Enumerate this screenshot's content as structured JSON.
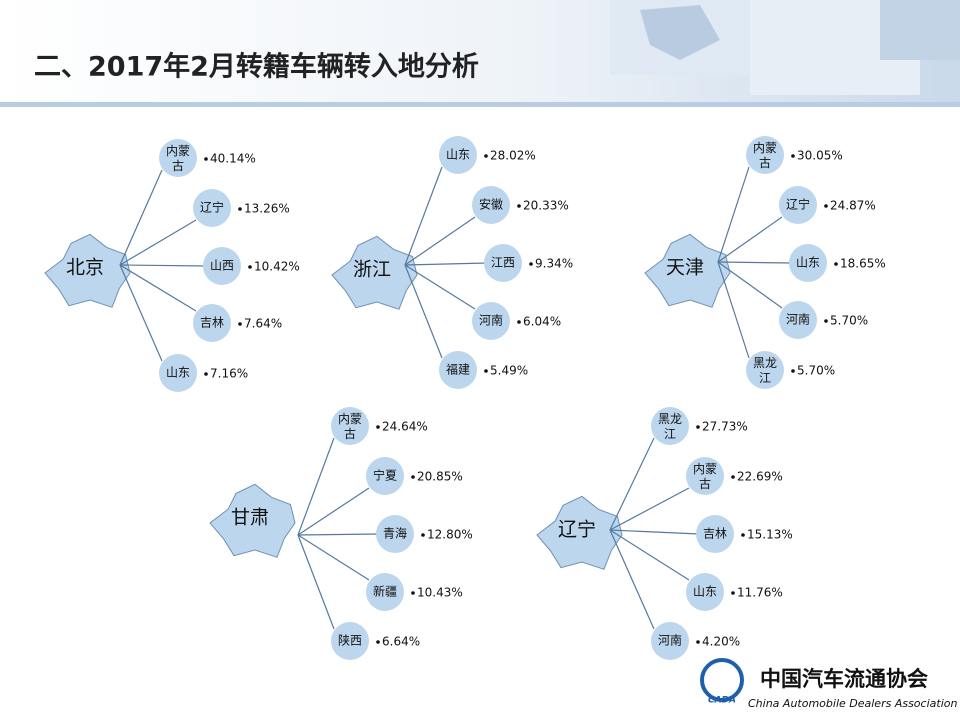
{
  "header": {
    "title": "二、2017年2月转籍车辆转入地分析"
  },
  "groups": [
    {
      "origin": "北京",
      "destinations": [
        {
          "name": "内蒙古",
          "share": "40.14%"
        },
        {
          "name": "辽宁",
          "share": "13.26%"
        },
        {
          "name": "山西",
          "share": "10.42%"
        },
        {
          "name": "吉林",
          "share": "7.64%"
        },
        {
          "name": "山东",
          "share": "7.16%"
        }
      ]
    },
    {
      "origin": "浙江",
      "destinations": [
        {
          "name": "山东",
          "share": "28.02%"
        },
        {
          "name": "安徽",
          "share": "20.33%"
        },
        {
          "name": "江西",
          "share": "9.34%"
        },
        {
          "name": "河南",
          "share": "6.04%"
        },
        {
          "name": "福建",
          "share": "5.49%"
        }
      ]
    },
    {
      "origin": "天津",
      "destinations": [
        {
          "name": "内蒙古",
          "share": "30.05%"
        },
        {
          "name": "辽宁",
          "share": "24.87%"
        },
        {
          "name": "山东",
          "share": "18.65%"
        },
        {
          "name": "河南",
          "share": "5.70%"
        },
        {
          "name": "黑龙江",
          "share": "5.70%"
        }
      ]
    },
    {
      "origin": "甘肃",
      "destinations": [
        {
          "name": "内蒙古",
          "share": "24.64%"
        },
        {
          "name": "宁夏",
          "share": "20.85%"
        },
        {
          "name": "青海",
          "share": "12.80%"
        },
        {
          "name": "新疆",
          "share": "10.43%"
        },
        {
          "name": "陕西",
          "share": "6.64%"
        }
      ]
    },
    {
      "origin": "辽宁",
      "destinations": [
        {
          "name": "黑龙江",
          "share": "27.73%"
        },
        {
          "name": "内蒙古",
          "share": "22.69%"
        },
        {
          "name": "吉林",
          "share": "15.13%"
        },
        {
          "name": "山东",
          "share": "11.76%"
        },
        {
          "name": "河南",
          "share": "4.20%"
        }
      ]
    }
  ],
  "logo": {
    "name": "中国汽车流通协会",
    "english": "China Automobile Dealers Association",
    "mark": "CADA"
  }
}
